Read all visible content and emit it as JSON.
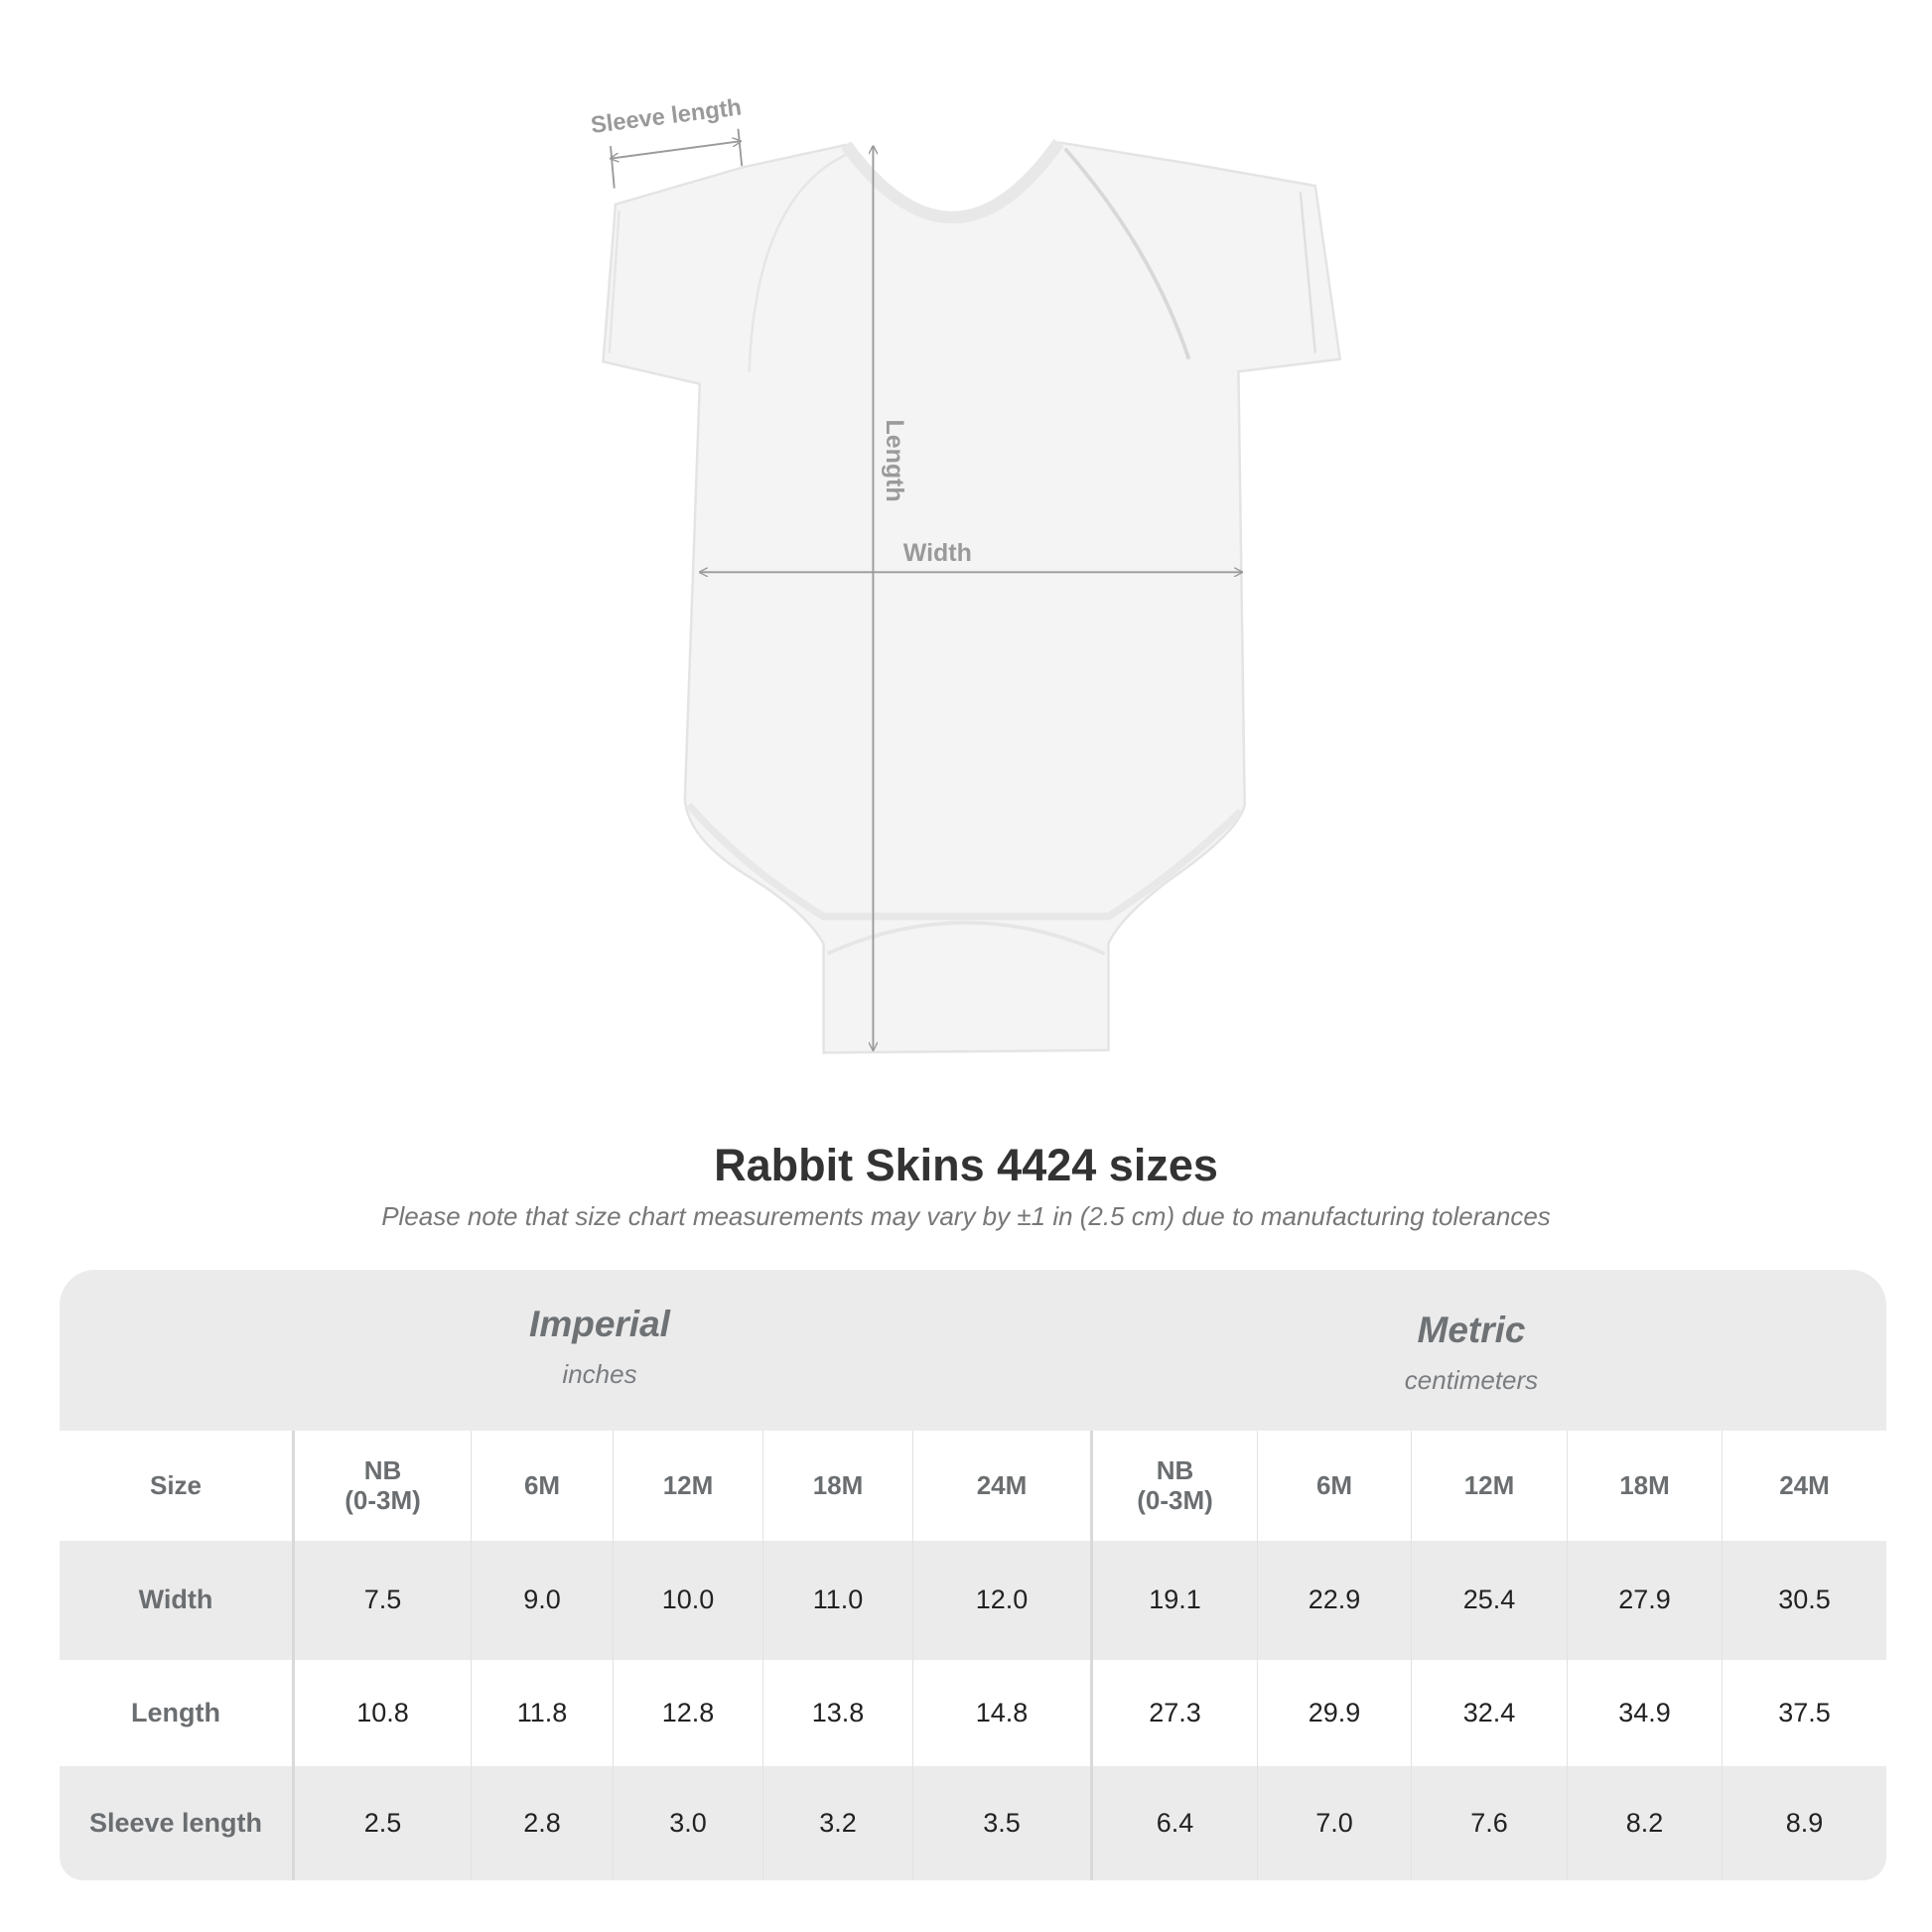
{
  "diagram": {
    "labels": {
      "sleeve_length": "Sleeve length",
      "length": "Length",
      "width": "Width"
    },
    "colors": {
      "garment": "#f4f4f4",
      "measure_lines": "#9a9a9a"
    }
  },
  "title": "Rabbit Skins 4424 sizes",
  "note": "Please note that size chart measurements may vary by ±1 in (2.5 cm) due to manufacturing tolerances",
  "table": {
    "imperial": {
      "name": "Imperial",
      "unit": "inches"
    },
    "metric": {
      "name": "Metric",
      "unit": "centimeters"
    },
    "rows": [
      [
        "Size",
        "NB\n(0-3M)",
        "6M",
        "12M",
        "18M",
        "24M",
        "NB\n(0-3M)",
        "6M",
        "12M",
        "18M",
        "24M"
      ],
      [
        "Width",
        "7.5",
        "9.0",
        "10.0",
        "11.0",
        "12.0",
        "19.1",
        "22.9",
        "25.4",
        "27.9",
        "30.5"
      ],
      [
        "Length",
        "10.8",
        "11.8",
        "12.8",
        "13.8",
        "14.8",
        "27.3",
        "29.9",
        "32.4",
        "34.9",
        "37.5"
      ],
      [
        "Sleeve length",
        "2.5",
        "2.8",
        "3.0",
        "3.2",
        "3.5",
        "6.4",
        "7.0",
        "7.6",
        "8.2",
        "8.9"
      ]
    ]
  }
}
